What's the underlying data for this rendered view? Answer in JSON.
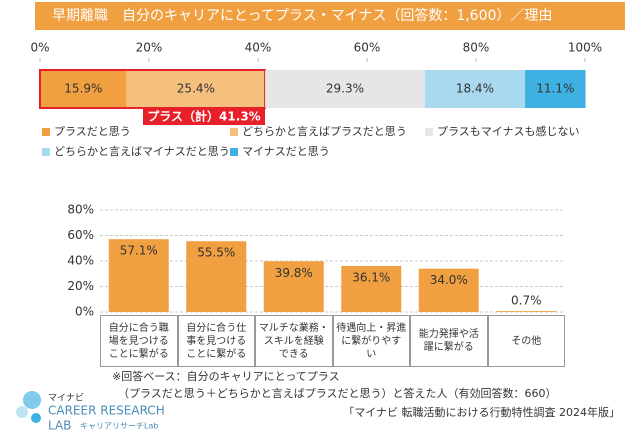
{
  "header": {
    "title": "早期離職　自分のキャリアにとってプラス・マイナス（回答数：1,600）／理由"
  },
  "chart_data": [
    {
      "type": "stacked-bar",
      "orientation": "horizontal",
      "categories": [
        null
      ],
      "xlim": [
        0,
        100
      ],
      "xticks": [
        {
          "value": 0,
          "label": "0%"
        },
        {
          "value": 20,
          "label": "20%"
        },
        {
          "value": 40,
          "label": "40%"
        },
        {
          "value": 60,
          "label": "60%"
        },
        {
          "value": 80,
          "label": "80%"
        },
        {
          "value": 100,
          "label": "100%"
        }
      ],
      "series": [
        {
          "name": "プラスだと思う",
          "color": "#f0a040",
          "values": [
            15.9
          ],
          "value_labels": [
            "15.9%"
          ]
        },
        {
          "name": "どちらかと言えばプラスだと思う",
          "color": "#f5c07e",
          "values": [
            25.4
          ],
          "value_labels": [
            "25.4%"
          ]
        },
        {
          "name": "プラスもマイナスも感じない",
          "color": "#e6e6e6",
          "values": [
            29.3
          ],
          "value_labels": [
            "29.3%"
          ]
        },
        {
          "name": "どちらかと言えばマイナスだと思う",
          "color": "#a9d9ee",
          "values": [
            18.4
          ],
          "value_labels": [
            "18.4%"
          ]
        },
        {
          "name": "マイナスだと思う",
          "color": "#3fb0e2",
          "values": [
            11.1
          ],
          "value_labels": [
            "11.1%"
          ]
        }
      ],
      "annotation": "プラス（計）41.3%"
    },
    {
      "type": "bar",
      "color": "#f0a040",
      "categories": [
        "自分に合う職\n場を見つける\nことに繋がる",
        "自分に合う仕\n事を見つける\nことに繋がる",
        "マルチな業務・\nスキルを経験\nできる",
        "待遇向上・昇進\nに繋がりやす\nい",
        "能力発揮や活\n躍に繋がる",
        "その他"
      ],
      "values": [
        57.1,
        55.5,
        39.8,
        36.1,
        34.0,
        0.7
      ],
      "value_labels": [
        "57.1%",
        "55.5%",
        "39.8%",
        "36.1%",
        "34.0%",
        "0.7%"
      ],
      "ylim": [
        0,
        80
      ],
      "yticks": [
        {
          "value": 0,
          "label": "0%"
        },
        {
          "value": 20,
          "label": "20%"
        },
        {
          "value": 40,
          "label": "40%"
        },
        {
          "value": 60,
          "label": "60%"
        },
        {
          "value": 80,
          "label": "80%"
        }
      ],
      "grid": true
    }
  ],
  "notes": [
    "※回答ベース：自分のキャリアにとってプラス",
    "（プラスだと思う＋どちらかと言えばプラスだと思う）と答えた人（有効回答数：660）"
  ],
  "source": "「マイナビ 転職活動における行動特性調査 2024年版」",
  "logo": {
    "brand": "マイナビ",
    "line1": "CAREER RESEARCH",
    "line2": "LAB",
    "sub": "キャリアリサーチLab"
  }
}
